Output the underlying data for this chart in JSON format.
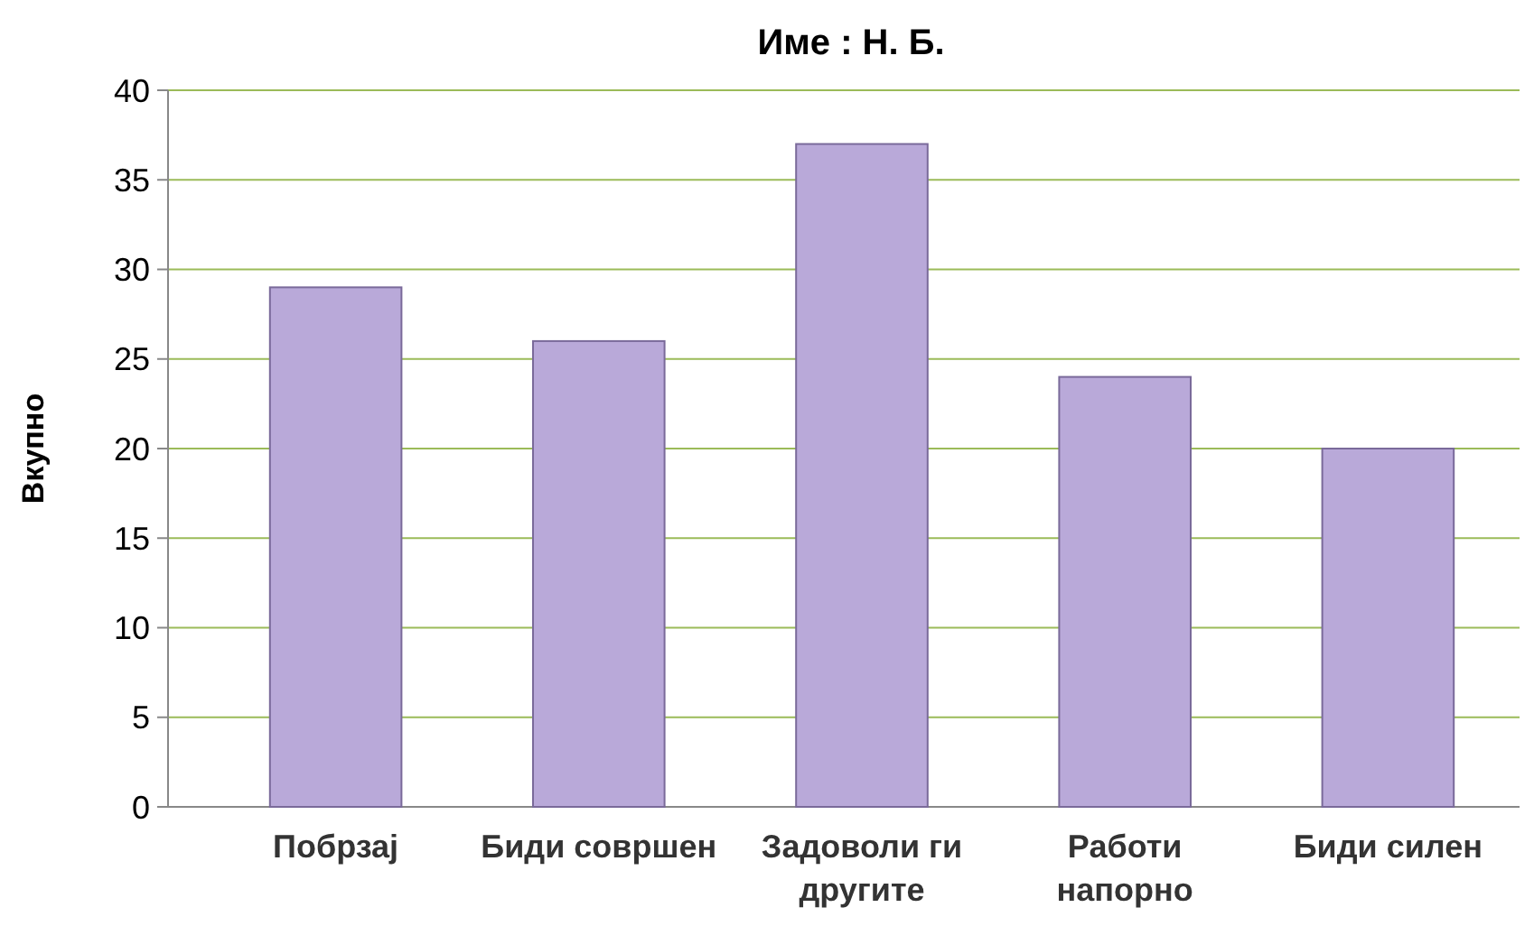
{
  "chart_data": {
    "type": "bar",
    "title": "Име :   Н. Б.",
    "ylabel": "Вкупно",
    "categories": [
      "Побрзај",
      "Биди совршен",
      "Задоволи ги другите",
      "Работи напорно",
      "Биди силен"
    ],
    "values": [
      29,
      26,
      37,
      24,
      20
    ],
    "color": "#b9a9d9",
    "ylim": [
      0,
      40
    ],
    "yticks": [
      0,
      5,
      10,
      15,
      20,
      25,
      30,
      35,
      40
    ],
    "grid": "y"
  }
}
